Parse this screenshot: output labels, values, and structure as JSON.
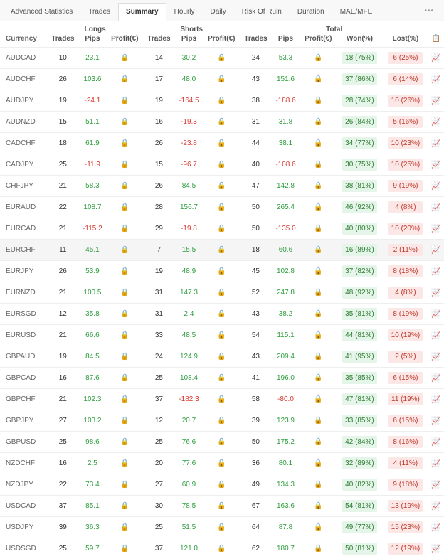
{
  "tabs": [
    "Advanced Statistics",
    "Trades",
    "Summary",
    "Hourly",
    "Daily",
    "Risk Of Ruin",
    "Duration",
    "MAE/MFE"
  ],
  "active_tab": 2,
  "groups": [
    "Longs",
    "Shorts",
    "Total"
  ],
  "cols": {
    "currency": "Currency",
    "trades": "Trades",
    "pips": "Pips",
    "profit": "Profit(€)",
    "won": "Won(%)",
    "lost": "Lost(%)"
  },
  "highlight_row": 9,
  "rows": [
    {
      "c": "AUDCAD",
      "lt": 10,
      "lp": "23.1",
      "lpn": 0,
      "st": 14,
      "sp": "30.2",
      "spn": 0,
      "tt": 24,
      "tp": "53.3",
      "tpn": 0,
      "w": "18 (75%)",
      "l": "6 (25%)"
    },
    {
      "c": "AUDCHF",
      "lt": 26,
      "lp": "103.6",
      "lpn": 0,
      "st": 17,
      "sp": "48.0",
      "spn": 0,
      "tt": 43,
      "tp": "151.6",
      "tpn": 0,
      "w": "37 (86%)",
      "l": "6 (14%)"
    },
    {
      "c": "AUDJPY",
      "lt": 19,
      "lp": "-24.1",
      "lpn": 1,
      "st": 19,
      "sp": "-164.5",
      "spn": 1,
      "tt": 38,
      "tp": "-188.6",
      "tpn": 1,
      "w": "28 (74%)",
      "l": "10 (26%)"
    },
    {
      "c": "AUDNZD",
      "lt": 15,
      "lp": "51.1",
      "lpn": 0,
      "st": 16,
      "sp": "-19.3",
      "spn": 1,
      "tt": 31,
      "tp": "31.8",
      "tpn": 0,
      "w": "26 (84%)",
      "l": "5 (16%)"
    },
    {
      "c": "CADCHF",
      "lt": 18,
      "lp": "61.9",
      "lpn": 0,
      "st": 26,
      "sp": "-23.8",
      "spn": 1,
      "tt": 44,
      "tp": "38.1",
      "tpn": 0,
      "w": "34 (77%)",
      "l": "10 (23%)"
    },
    {
      "c": "CADJPY",
      "lt": 25,
      "lp": "-11.9",
      "lpn": 1,
      "st": 15,
      "sp": "-96.7",
      "spn": 1,
      "tt": 40,
      "tp": "-108.6",
      "tpn": 1,
      "w": "30 (75%)",
      "l": "10 (25%)"
    },
    {
      "c": "CHFJPY",
      "lt": 21,
      "lp": "58.3",
      "lpn": 0,
      "st": 26,
      "sp": "84.5",
      "spn": 0,
      "tt": 47,
      "tp": "142.8",
      "tpn": 0,
      "w": "38 (81%)",
      "l": "9 (19%)"
    },
    {
      "c": "EURAUD",
      "lt": 22,
      "lp": "108.7",
      "lpn": 0,
      "st": 28,
      "sp": "156.7",
      "spn": 0,
      "tt": 50,
      "tp": "265.4",
      "tpn": 0,
      "w": "46 (92%)",
      "l": "4 (8%)"
    },
    {
      "c": "EURCAD",
      "lt": 21,
      "lp": "-115.2",
      "lpn": 1,
      "st": 29,
      "sp": "-19.8",
      "spn": 1,
      "tt": 50,
      "tp": "-135.0",
      "tpn": 1,
      "w": "40 (80%)",
      "l": "10 (20%)"
    },
    {
      "c": "EURCHF",
      "lt": 11,
      "lp": "45.1",
      "lpn": 0,
      "st": 7,
      "sp": "15.5",
      "spn": 0,
      "tt": 18,
      "tp": "60.6",
      "tpn": 0,
      "w": "16 (89%)",
      "l": "2 (11%)"
    },
    {
      "c": "EURJPY",
      "lt": 26,
      "lp": "53.9",
      "lpn": 0,
      "st": 19,
      "sp": "48.9",
      "spn": 0,
      "tt": 45,
      "tp": "102.8",
      "tpn": 0,
      "w": "37 (82%)",
      "l": "8 (18%)"
    },
    {
      "c": "EURNZD",
      "lt": 21,
      "lp": "100.5",
      "lpn": 0,
      "st": 31,
      "sp": "147.3",
      "spn": 0,
      "tt": 52,
      "tp": "247.8",
      "tpn": 0,
      "w": "48 (92%)",
      "l": "4 (8%)"
    },
    {
      "c": "EURSGD",
      "lt": 12,
      "lp": "35.8",
      "lpn": 0,
      "st": 31,
      "sp": "2.4",
      "spn": 0,
      "tt": 43,
      "tp": "38.2",
      "tpn": 0,
      "w": "35 (81%)",
      "l": "8 (19%)"
    },
    {
      "c": "EURUSD",
      "lt": 21,
      "lp": "66.6",
      "lpn": 0,
      "st": 33,
      "sp": "48.5",
      "spn": 0,
      "tt": 54,
      "tp": "115.1",
      "tpn": 0,
      "w": "44 (81%)",
      "l": "10 (19%)"
    },
    {
      "c": "GBPAUD",
      "lt": 19,
      "lp": "84.5",
      "lpn": 0,
      "st": 24,
      "sp": "124.9",
      "spn": 0,
      "tt": 43,
      "tp": "209.4",
      "tpn": 0,
      "w": "41 (95%)",
      "l": "2 (5%)"
    },
    {
      "c": "GBPCAD",
      "lt": 16,
      "lp": "87.6",
      "lpn": 0,
      "st": 25,
      "sp": "108.4",
      "spn": 0,
      "tt": 41,
      "tp": "196.0",
      "tpn": 0,
      "w": "35 (85%)",
      "l": "6 (15%)"
    },
    {
      "c": "GBPCHF",
      "lt": 21,
      "lp": "102.3",
      "lpn": 0,
      "st": 37,
      "sp": "-182.3",
      "spn": 1,
      "tt": 58,
      "tp": "-80.0",
      "tpn": 1,
      "w": "47 (81%)",
      "l": "11 (19%)"
    },
    {
      "c": "GBPJPY",
      "lt": 27,
      "lp": "103.2",
      "lpn": 0,
      "st": 12,
      "sp": "20.7",
      "spn": 0,
      "tt": 39,
      "tp": "123.9",
      "tpn": 0,
      "w": "33 (85%)",
      "l": "6 (15%)"
    },
    {
      "c": "GBPUSD",
      "lt": 25,
      "lp": "98.6",
      "lpn": 0,
      "st": 25,
      "sp": "76.6",
      "spn": 0,
      "tt": 50,
      "tp": "175.2",
      "tpn": 0,
      "w": "42 (84%)",
      "l": "8 (16%)"
    },
    {
      "c": "NZDCHF",
      "lt": 16,
      "lp": "2.5",
      "lpn": 0,
      "st": 20,
      "sp": "77.6",
      "spn": 0,
      "tt": 36,
      "tp": "80.1",
      "tpn": 0,
      "w": "32 (89%)",
      "l": "4 (11%)"
    },
    {
      "c": "NZDJPY",
      "lt": 22,
      "lp": "73.4",
      "lpn": 0,
      "st": 27,
      "sp": "60.9",
      "spn": 0,
      "tt": 49,
      "tp": "134.3",
      "tpn": 0,
      "w": "40 (82%)",
      "l": "9 (18%)"
    },
    {
      "c": "USDCAD",
      "lt": 37,
      "lp": "85.1",
      "lpn": 0,
      "st": 30,
      "sp": "78.5",
      "spn": 0,
      "tt": 67,
      "tp": "163.6",
      "tpn": 0,
      "w": "54 (81%)",
      "l": "13 (19%)"
    },
    {
      "c": "USDJPY",
      "lt": 39,
      "lp": "36.3",
      "lpn": 0,
      "st": 25,
      "sp": "51.5",
      "spn": 0,
      "tt": 64,
      "tp": "87.8",
      "tpn": 0,
      "w": "49 (77%)",
      "l": "15 (23%)"
    },
    {
      "c": "USDSGD",
      "lt": 25,
      "lp": "59.7",
      "lpn": 0,
      "st": 37,
      "sp": "121.0",
      "spn": 0,
      "tt": 62,
      "tp": "180.7",
      "tpn": 0,
      "w": "50 (81%)",
      "l": "12 (19%)"
    }
  ]
}
